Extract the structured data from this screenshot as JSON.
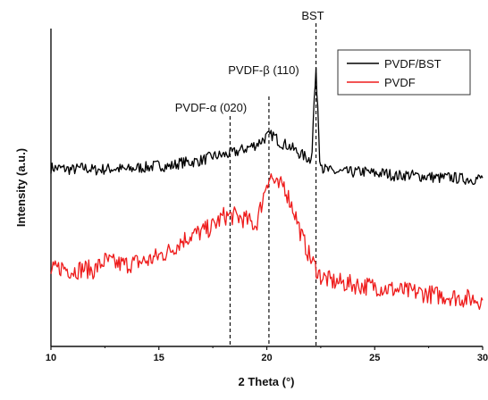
{
  "chart_data": {
    "type": "line",
    "title": "",
    "xlabel": "2 Theta (°)",
    "ylabel": "Intensity (a.u.)",
    "xlim": [
      10,
      30
    ],
    "xticks": [
      10,
      15,
      20,
      25,
      30
    ],
    "grid": false,
    "legend": "top-right",
    "series": [
      {
        "name": "PVDF/BST",
        "color": "#000000",
        "points": [
          [
            10,
            0.562
          ],
          [
            10.5,
            0.56
          ],
          [
            11,
            0.556
          ],
          [
            11.5,
            0.562
          ],
          [
            12,
            0.555
          ],
          [
            12.5,
            0.558
          ],
          [
            13,
            0.56
          ],
          [
            13.5,
            0.556
          ],
          [
            14,
            0.562
          ],
          [
            14.5,
            0.564
          ],
          [
            15,
            0.57
          ],
          [
            15.5,
            0.566
          ],
          [
            16,
            0.578
          ],
          [
            16.5,
            0.58
          ],
          [
            17,
            0.586
          ],
          [
            17.5,
            0.598
          ],
          [
            18,
            0.602
          ],
          [
            18.5,
            0.61
          ],
          [
            19,
            0.622
          ],
          [
            19.5,
            0.635
          ],
          [
            20,
            0.66
          ],
          [
            20.3,
            0.665
          ],
          [
            20.6,
            0.642
          ],
          [
            21,
            0.632
          ],
          [
            21.5,
            0.608
          ],
          [
            22,
            0.588
          ],
          [
            22.1,
            0.62
          ],
          [
            22.2,
            0.78
          ],
          [
            22.28,
            0.858
          ],
          [
            22.36,
            0.76
          ],
          [
            22.45,
            0.6
          ],
          [
            22.6,
            0.56
          ],
          [
            23,
            0.55
          ],
          [
            23.5,
            0.548
          ],
          [
            24,
            0.548
          ],
          [
            24.5,
            0.55
          ],
          [
            25,
            0.544
          ],
          [
            25.5,
            0.545
          ],
          [
            26,
            0.536
          ],
          [
            26.5,
            0.54
          ],
          [
            27,
            0.536
          ],
          [
            27.5,
            0.534
          ],
          [
            28,
            0.53
          ],
          [
            28.5,
            0.532
          ],
          [
            29,
            0.528
          ],
          [
            29.5,
            0.526
          ],
          [
            30,
            0.53
          ]
        ]
      },
      {
        "name": "PVDF",
        "color": "#ee1c1c",
        "points": [
          [
            10,
            0.235
          ],
          [
            10.5,
            0.25
          ],
          [
            11,
            0.238
          ],
          [
            11.5,
            0.245
          ],
          [
            12,
            0.24
          ],
          [
            12.5,
            0.27
          ],
          [
            13,
            0.26
          ],
          [
            13.5,
            0.258
          ],
          [
            14,
            0.265
          ],
          [
            14.5,
            0.27
          ],
          [
            15,
            0.285
          ],
          [
            15.5,
            0.3
          ],
          [
            16,
            0.33
          ],
          [
            16.5,
            0.35
          ],
          [
            17,
            0.36
          ],
          [
            17.5,
            0.378
          ],
          [
            18,
            0.41
          ],
          [
            18.5,
            0.41
          ],
          [
            19,
            0.4
          ],
          [
            19.5,
            0.38
          ],
          [
            19.8,
            0.46
          ],
          [
            20,
            0.52
          ],
          [
            20.2,
            0.535
          ],
          [
            20.5,
            0.5
          ],
          [
            20.8,
            0.51
          ],
          [
            21,
            0.47
          ],
          [
            21.3,
            0.42
          ],
          [
            21.6,
            0.35
          ],
          [
            22,
            0.28
          ],
          [
            22.5,
            0.22
          ],
          [
            23,
            0.205
          ],
          [
            23.5,
            0.2
          ],
          [
            24,
            0.195
          ],
          [
            24.5,
            0.19
          ],
          [
            25,
            0.19
          ],
          [
            25.5,
            0.182
          ],
          [
            26,
            0.178
          ],
          [
            26.5,
            0.172
          ],
          [
            27,
            0.17
          ],
          [
            27.5,
            0.165
          ],
          [
            28,
            0.16
          ],
          [
            28.5,
            0.158
          ],
          [
            29,
            0.152
          ],
          [
            29.5,
            0.15
          ],
          [
            30,
            0.145
          ]
        ]
      }
    ],
    "annotations": [
      {
        "label": "PVDF-α (020)",
        "x": 18.3
      },
      {
        "label": "PVDF-β (110)",
        "x": 20.1
      },
      {
        "label": "BST",
        "x": 22.28
      }
    ]
  }
}
